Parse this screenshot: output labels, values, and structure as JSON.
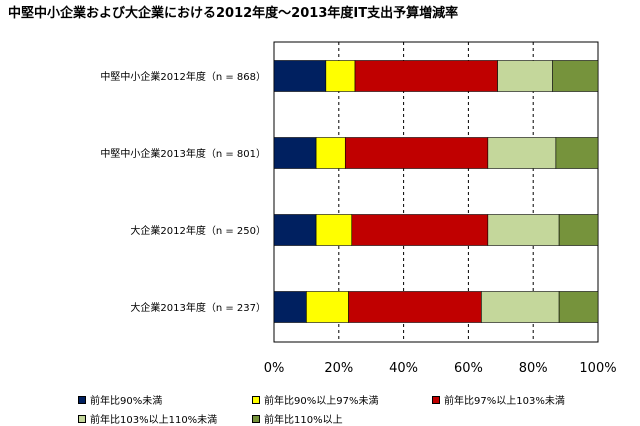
{
  "chart_data": {
    "type": "bar",
    "orientation": "horizontal",
    "stacked": "percent",
    "title": "中堅中小企業および大企業における2012年度～2013年度IT支出予算増減率",
    "categories": [
      "中堅中小企業2012年度（n = 868）",
      "中堅中小企業2013年度（n = 801）",
      "大企業2012年度（n = 250）",
      "大企業2013年度（n = 237）"
    ],
    "series": [
      {
        "name": "前年比90%未満",
        "color": "#002060",
        "values": [
          16,
          13,
          13,
          10
        ]
      },
      {
        "name": "前年比90%以上97%未満",
        "color": "#ffff00",
        "values": [
          9,
          9,
          11,
          13
        ]
      },
      {
        "name": "前年比97%以上103%未満",
        "color": "#c00000",
        "values": [
          44,
          44,
          42,
          41
        ]
      },
      {
        "name": "前年比103%以上110%未満",
        "color": "#c4d79b",
        "values": [
          17,
          21,
          22,
          24
        ]
      },
      {
        "name": "前年比110%以上",
        "color": "#76933c",
        "values": [
          14,
          13,
          12,
          12
        ]
      }
    ],
    "xlim": [
      0,
      100
    ],
    "xticks": [
      "0%",
      "20%",
      "40%",
      "60%",
      "80%",
      "100%"
    ],
    "grid": "dashed-vertical",
    "legend": "bottom"
  }
}
